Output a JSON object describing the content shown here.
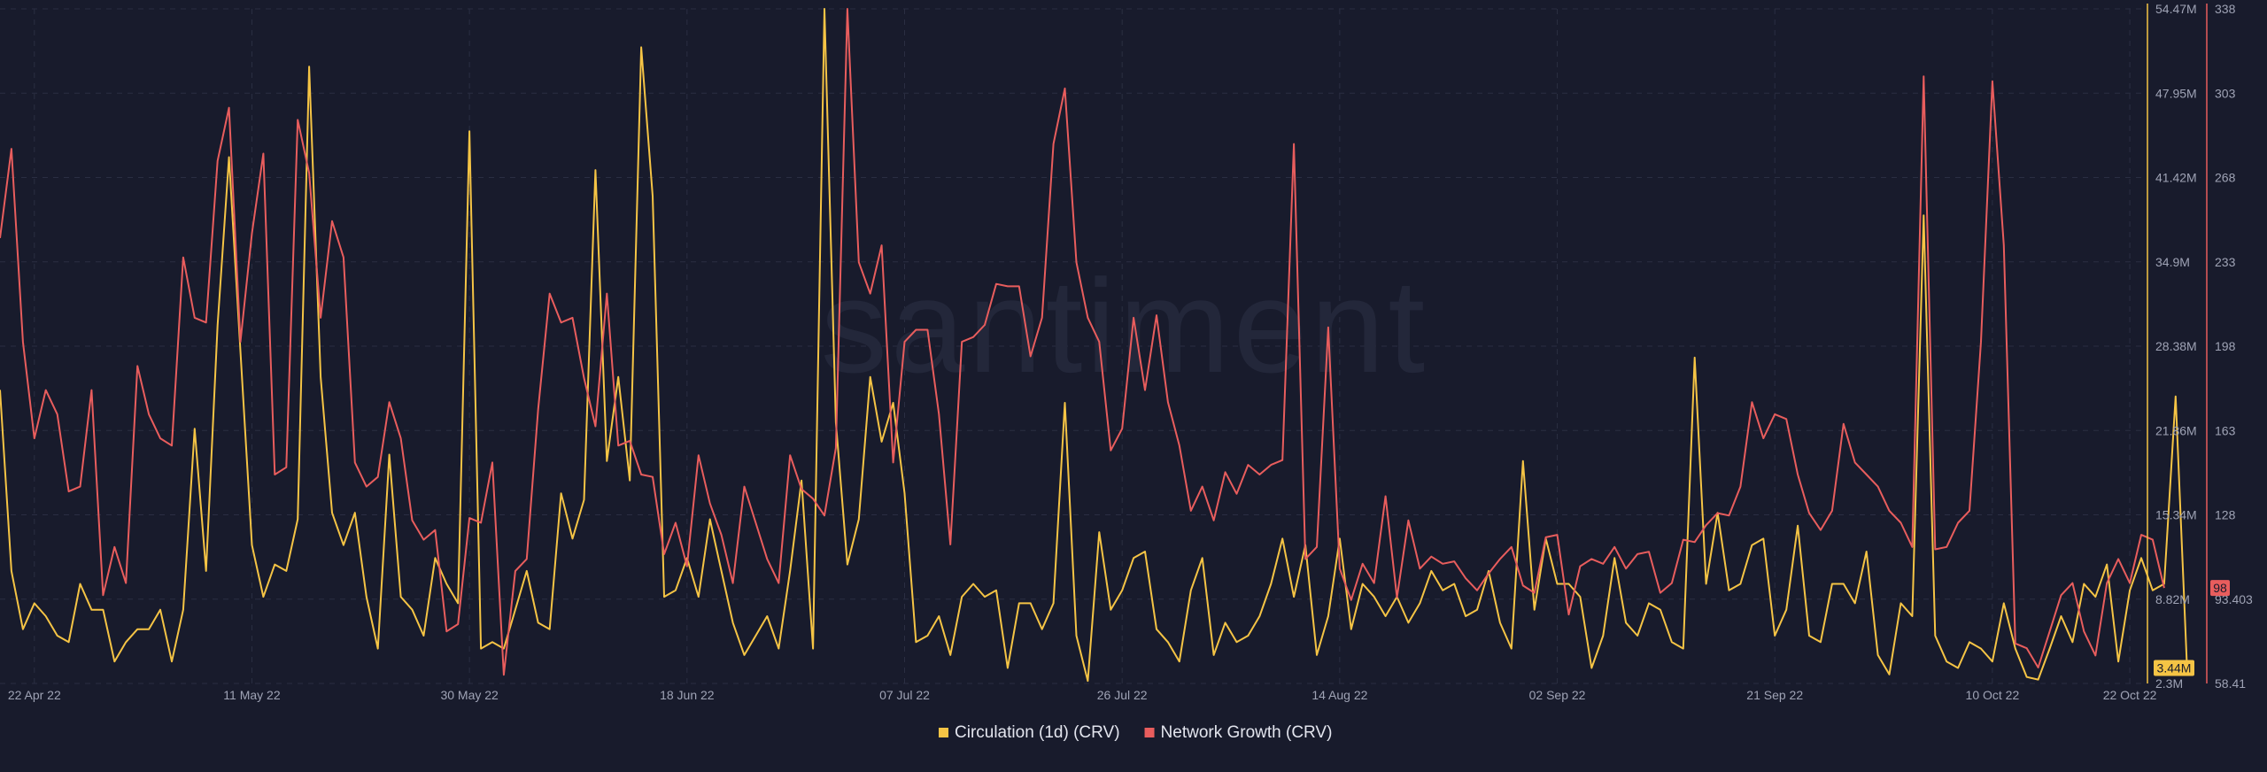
{
  "watermark": "santiment",
  "colors": {
    "background": "#181b2c",
    "grid": "#2a2e42",
    "circulation": "#f5c445",
    "network_growth": "#e85d5d"
  },
  "chart_data": {
    "type": "line",
    "title": "",
    "x_tick_labels": [
      "22 Apr 22",
      "11 May 22",
      "30 May 22",
      "18 Jun 22",
      "07 Jul 22",
      "26 Jul 22",
      "14 Aug 22",
      "02 Sep 22",
      "21 Sep 22",
      "10 Oct 22",
      "22 Oct 22"
    ],
    "x_range": [
      "2022-04-19",
      "2022-10-23"
    ],
    "grid": true,
    "legend_position": "bottom-center",
    "axes": {
      "circulation": {
        "side": "right",
        "range": [
          2.3,
          54.47
        ],
        "unit": "M",
        "tick_labels": [
          "54.47M",
          "47.95M",
          "41.42M",
          "34.9M",
          "28.38M",
          "21.86M",
          "15.34M",
          "8.82M",
          "2.3M"
        ],
        "last_value_label": "3.44M"
      },
      "network_growth": {
        "side": "right",
        "range": [
          58.41,
          338
        ],
        "tick_labels": [
          "338",
          "303",
          "268",
          "233",
          "198",
          "163",
          "128",
          "93.403",
          "58.41"
        ],
        "last_value_label": "98"
      }
    },
    "series": [
      {
        "name": "Circulation (1d) (CRV)",
        "axis": "circulation",
        "start_date": "2022-04-19",
        "step_days": 1,
        "values": [
          25,
          11,
          6.5,
          8.5,
          7.5,
          6,
          5.5,
          10,
          8,
          8,
          4,
          5.5,
          6.5,
          6.5,
          8,
          4,
          8,
          22,
          11,
          30,
          43,
          28,
          13,
          9,
          11.5,
          11,
          15,
          50,
          26,
          15.5,
          13,
          15.5,
          9,
          5,
          20,
          9,
          8,
          6,
          12,
          10,
          8.5,
          45,
          5,
          5.5,
          5,
          8,
          11,
          7,
          6.5,
          17,
          13.5,
          16.5,
          42,
          19.5,
          26,
          18,
          51.5,
          40,
          9,
          9.5,
          12,
          9,
          15,
          11,
          7,
          4.5,
          6,
          7.5,
          5,
          11,
          18,
          5,
          56.5,
          22.5,
          11.5,
          15,
          26,
          21,
          24,
          17,
          5.5,
          6,
          7.5,
          4.5,
          9,
          10,
          9,
          9.5,
          3.5,
          8.5,
          8.5,
          6.5,
          8.5,
          24,
          6,
          2.5,
          14,
          8,
          9.5,
          12,
          12.5,
          6.5,
          5.5,
          4,
          9.5,
          12,
          4.5,
          7,
          5.5,
          6,
          7.5,
          10,
          13.5,
          9,
          13,
          4.5,
          7.5,
          13.5,
          6.5,
          10,
          9,
          7.5,
          9,
          7,
          8.5,
          11,
          9.5,
          10,
          7.5,
          8,
          11,
          7,
          5,
          19.5,
          8,
          13.5,
          10,
          10,
          9,
          3.5,
          6,
          12,
          7,
          6,
          8.5,
          8,
          5.5,
          5,
          27.5,
          10,
          15.5,
          9.5,
          10,
          13,
          13.5,
          6,
          8,
          14.5,
          6,
          5.5,
          10,
          10,
          8.5,
          12.5,
          4.5,
          3,
          8.5,
          7.5,
          38.5,
          6,
          4,
          3.5,
          5.5,
          5,
          4,
          8.5,
          5,
          2.8,
          2.6,
          5,
          7.5,
          5.5,
          10,
          9,
          11.5,
          4,
          9.5,
          12,
          9.5,
          10,
          24.5,
          3.5
        ]
      },
      {
        "name": "Network Growth (CRV)",
        "axis": "network_growth",
        "start_date": "2022-04-19",
        "step_days": 1,
        "values": [
          243,
          280,
          200,
          160,
          180,
          170,
          138,
          140,
          180,
          95,
          115,
          100,
          190,
          170,
          160,
          157,
          235,
          210,
          208,
          275,
          297,
          200,
          245,
          278,
          145,
          148,
          292,
          270,
          210,
          250,
          235,
          150,
          140,
          144,
          175,
          160,
          126,
          118,
          122,
          80,
          83,
          127,
          125,
          150,
          62,
          105,
          110,
          172,
          220,
          208,
          210,
          185,
          165,
          220,
          157,
          159,
          145,
          144,
          112,
          125,
          107,
          153,
          133,
          120,
          100,
          140,
          125,
          110,
          100,
          153,
          139,
          135,
          128,
          156,
          338,
          233,
          220,
          240,
          150,
          200,
          205,
          205,
          170,
          116,
          200,
          202,
          207,
          224,
          223,
          223,
          194,
          210,
          282,
          305,
          233,
          210,
          200,
          155,
          164,
          210,
          180,
          211,
          175,
          157,
          130,
          140,
          126,
          146,
          137,
          149,
          145,
          149,
          151,
          282,
          110,
          115,
          206,
          106,
          93,
          108,
          100,
          136,
          94,
          126,
          106,
          111,
          108,
          109,
          102,
          97,
          104,
          110,
          115,
          99,
          96,
          119,
          120,
          87,
          107,
          110,
          108,
          115,
          106,
          112,
          113,
          96,
          100,
          118,
          117,
          124,
          129,
          128,
          140,
          175,
          160,
          170,
          168,
          145,
          129,
          122,
          130,
          166,
          150,
          145,
          140,
          130,
          125,
          115,
          310,
          114,
          115,
          125,
          130,
          200,
          308,
          240,
          75,
          73,
          65,
          80,
          95,
          100,
          80,
          70,
          100,
          110,
          100,
          120,
          118,
          98
        ]
      }
    ]
  }
}
